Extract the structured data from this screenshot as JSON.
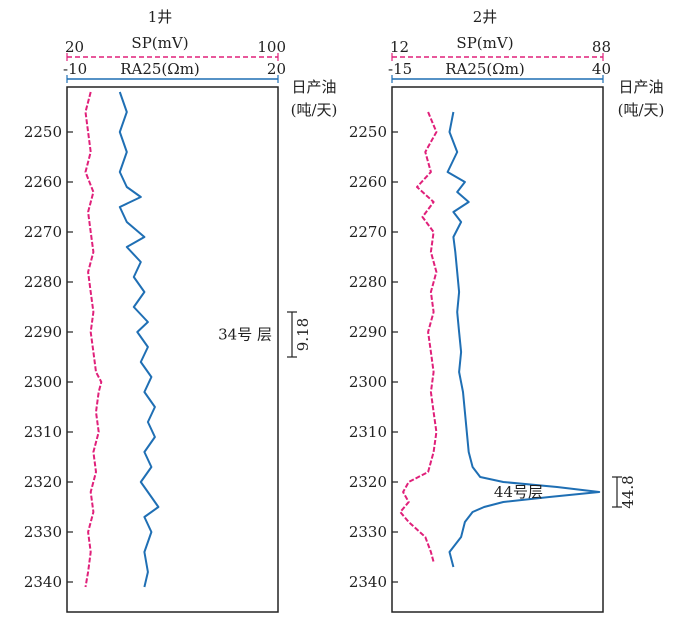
{
  "colors": {
    "sp": "#e0207a",
    "ra25": "#1f6fb4",
    "frame": "#222222"
  },
  "chart_data": [
    {
      "type": "line",
      "title": "1井",
      "ylim": [
        2241,
        2346
      ],
      "yticks": [
        2250,
        2260,
        2270,
        2280,
        2290,
        2300,
        2310,
        2320,
        2330,
        2340
      ],
      "axes": {
        "sp": {
          "label": "SP(mV)",
          "min": "20",
          "max": "100",
          "range": [
            20,
            100
          ],
          "style": "dashed"
        },
        "ra25": {
          "label": "RA25(Ωm)",
          "min": "-10",
          "max": "20",
          "range": [
            -10,
            20
          ],
          "style": "solid"
        }
      },
      "oil_label": "日产油",
      "oil_unit": "(吨/天)",
      "series": [
        {
          "name": "SP(mV)",
          "axis": "sp",
          "depth": [
            2242,
            2246,
            2250,
            2254,
            2258,
            2262,
            2266,
            2270,
            2274,
            2278,
            2282,
            2286,
            2290,
            2294,
            2298,
            2300,
            2302,
            2306,
            2310,
            2314,
            2318,
            2322,
            2326,
            2330,
            2334,
            2338,
            2341
          ],
          "values": [
            29,
            27,
            28,
            29,
            27,
            30,
            28,
            29,
            30,
            28,
            29,
            30,
            29,
            30,
            31,
            33,
            32,
            31,
            32,
            30,
            31,
            29,
            30,
            28,
            29,
            28,
            27
          ]
        },
        {
          "name": "RA25(Ωm)",
          "axis": "ra25",
          "depth": [
            2242,
            2246,
            2250,
            2254,
            2258,
            2261,
            2263,
            2265,
            2268,
            2271,
            2273,
            2276,
            2279,
            2282,
            2285,
            2288,
            2290,
            2293,
            2296,
            2299,
            2302,
            2305,
            2308,
            2311,
            2314,
            2317,
            2320,
            2323,
            2325,
            2327,
            2330,
            2334,
            2338,
            2341
          ],
          "values": [
            -2.5,
            -1.5,
            -2.5,
            -1.5,
            -2.5,
            -1.5,
            0.5,
            -2.5,
            -1.5,
            1.0,
            -1.5,
            0.5,
            -0.5,
            1.0,
            -0.5,
            1.5,
            0.0,
            1.5,
            0.5,
            2.0,
            1.0,
            2.5,
            1.5,
            2.5,
            1.0,
            2.0,
            0.5,
            2.0,
            3.0,
            1.0,
            2.0,
            1.0,
            1.5,
            1.0
          ]
        }
      ],
      "annotations": [
        {
          "text": "34号 层",
          "depth_top": 2286,
          "depth_bottom": 2295,
          "oil": "9.18"
        }
      ]
    },
    {
      "type": "line",
      "title": "2井",
      "ylim": [
        2241,
        2346
      ],
      "yticks": [
        2250,
        2260,
        2270,
        2280,
        2290,
        2300,
        2310,
        2320,
        2330,
        2340
      ],
      "axes": {
        "sp": {
          "label": "SP(mV)",
          "min": "12",
          "max": "88",
          "range": [
            12,
            88
          ],
          "style": "dashed"
        },
        "ra25": {
          "label": "RA25(Ωm)",
          "min": "-15",
          "max": "40",
          "range": [
            -15,
            40
          ],
          "style": "solid"
        }
      },
      "oil_label": "日产油",
      "oil_unit": "(吨/天)",
      "series": [
        {
          "name": "SP(mV)",
          "axis": "sp",
          "depth": [
            2246,
            2250,
            2254,
            2258,
            2261,
            2264,
            2267,
            2270,
            2274,
            2278,
            2282,
            2286,
            2290,
            2294,
            2298,
            2302,
            2306,
            2310,
            2314,
            2318,
            2320,
            2322,
            2324,
            2326,
            2328,
            2331,
            2334,
            2336
          ],
          "values": [
            25,
            28,
            24,
            26,
            21,
            27,
            23,
            27,
            26,
            28,
            26,
            27,
            25,
            26,
            27,
            26,
            27,
            28,
            27,
            25,
            18,
            16,
            18,
            15,
            18,
            24,
            26,
            27
          ]
        },
        {
          "name": "RA25(Ωm)",
          "axis": "ra25",
          "depth": [
            2246,
            2250,
            2254,
            2258,
            2260,
            2262,
            2264,
            2266,
            2268,
            2271,
            2274,
            2278,
            2282,
            2286,
            2290,
            2294,
            2298,
            2302,
            2306,
            2310,
            2314,
            2317,
            2319,
            2320,
            2321,
            2322,
            2323,
            2324,
            2325,
            2326,
            2328,
            2331,
            2334,
            2337
          ],
          "values": [
            1.0,
            0.0,
            2.0,
            -0.5,
            4.0,
            2.0,
            5.0,
            1.0,
            3.0,
            1.0,
            1.5,
            2.0,
            2.5,
            2.0,
            2.5,
            3.0,
            2.5,
            3.5,
            4.0,
            4.5,
            5.0,
            6.0,
            8.0,
            14.0,
            28.0,
            39.0,
            26.0,
            14.0,
            9.0,
            6.0,
            4.0,
            3.0,
            0.0,
            1.0
          ]
        }
      ],
      "annotations": [
        {
          "text": "44号层",
          "depth_top": 2319,
          "depth_bottom": 2325,
          "oil": "44.8"
        }
      ]
    }
  ]
}
